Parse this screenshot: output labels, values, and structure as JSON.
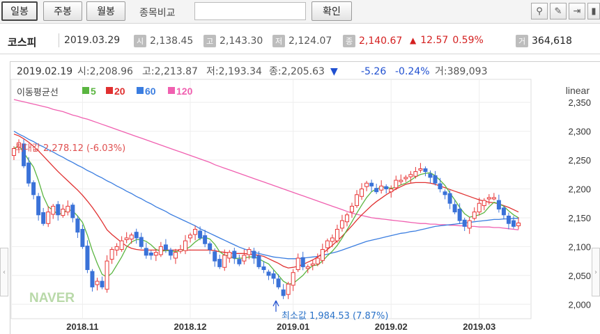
{
  "toolbar": {
    "period_buttons": [
      "일봉",
      "주봉",
      "월봉"
    ],
    "compare_label": "종목비교",
    "confirm_label": "확인",
    "tools": [
      "pin-icon",
      "pencil-icon",
      "cursor-icon",
      "bar-chart-icon"
    ]
  },
  "quote": {
    "name": "코스피",
    "date": "2019.03.29",
    "open_label": "시",
    "open": "2,138.45",
    "high_label": "고",
    "high": "2,143.30",
    "low_label": "저",
    "low": "2,124.07",
    "close_label": "종",
    "close": "2,140.67",
    "change_arrow": "▲",
    "change": "12.57",
    "change_pct": "0.59%",
    "volume_label": "거",
    "volume": "364,618",
    "up_color": "#d42020"
  },
  "chart_data": {
    "type": "candlestick",
    "info_line": {
      "date": "2019.02.19",
      "open": "시:2,208.96",
      "high": "고:2,213.87",
      "low": "저:2,193.34",
      "close": "종:2,205.63",
      "arrow": "▼",
      "change": "-5.26",
      "change_pct": "-0.24%",
      "volume": "거:389,093"
    },
    "scale_label": "linear",
    "ma_title": "이동평균선",
    "ma_legend": [
      {
        "period": "5",
        "color": "#5ab540"
      },
      {
        "period": "20",
        "color": "#e03030"
      },
      {
        "period": "60",
        "color": "#3a7de0"
      },
      {
        "period": "120",
        "color": "#f060b0"
      }
    ],
    "y_ticks": [
      2350,
      2300,
      2250,
      2200,
      2150,
      2100,
      2050,
      2000
    ],
    "ylim": [
      1975,
      2390
    ],
    "x_ticks": [
      "2018.11",
      "2018.12",
      "2019.01",
      "2019.02",
      "2019.03"
    ],
    "x_tick_index": [
      14,
      36,
      57,
      77,
      95
    ],
    "max_annotation": "최대값 2,278.12 (-6.03%)",
    "min_annotation": "최소값 1,984.53 (7.87%)",
    "watermark": "NAVER",
    "closes": [
      2270,
      2280,
      2240,
      2210,
      2190,
      2155,
      2140,
      2160,
      2170,
      2155,
      2165,
      2170,
      2150,
      2125,
      2100,
      2060,
      2030,
      2040,
      2030,
      2075,
      2095,
      2100,
      2110,
      2115,
      2120,
      2115,
      2100,
      2085,
      2085,
      2090,
      2100,
      2095,
      2085,
      2090,
      2095,
      2110,
      2120,
      2130,
      2115,
      2105,
      2095,
      2075,
      2065,
      2085,
      2090,
      2080,
      2070,
      2085,
      2095,
      2080,
      2065,
      2060,
      2050,
      2045,
      2030,
      2015,
      2035,
      2055,
      2080,
      2065,
      2065,
      2070,
      2080,
      2095,
      2110,
      2115,
      2130,
      2145,
      2155,
      2170,
      2190,
      2200,
      2210,
      2205,
      2195,
      2205,
      2200,
      2200,
      2215,
      2215,
      2220,
      2225,
      2230,
      2235,
      2230,
      2220,
      2210,
      2200,
      2190,
      2175,
      2160,
      2145,
      2135,
      2145,
      2160,
      2175,
      2180,
      2185,
      2185,
      2165,
      2155,
      2140,
      2135,
      2141
    ],
    "ma5": [
      2270,
      2275,
      2263,
      2250,
      2238,
      2215,
      2187,
      2169,
      2163,
      2156,
      2158,
      2164,
      2162,
      2153,
      2142,
      2120,
      2093,
      2071,
      2052,
      2047,
      2054,
      2068,
      2082,
      2099,
      2108,
      2112,
      2112,
      2109,
      2103,
      2095,
      2092,
      2093,
      2093,
      2091,
      2093,
      2095,
      2100,
      2108,
      2114,
      2116,
      2113,
      2104,
      2091,
      2085,
      2084,
      2079,
      2080,
      2080,
      2082,
      2082,
      2079,
      2074,
      2070,
      2060,
      2050,
      2040,
      2035,
      2036,
      2043,
      2050,
      2060,
      2067,
      2068,
      2075,
      2084,
      2092,
      2102,
      2115,
      2129,
      2143,
      2158,
      2172,
      2185,
      2195,
      2200,
      2203,
      2203,
      2201,
      2203,
      2207,
      2210,
      2215,
      2221,
      2225,
      2227,
      2228,
      2223,
      2215,
      2206,
      2193,
      2181,
      2168,
      2157,
      2151,
      2153,
      2155,
      2159,
      2169,
      2177,
      2174,
      2170,
      2162,
      2155,
      2150
    ],
    "ma20": [
      2295,
      2292,
      2287,
      2281,
      2274,
      2266,
      2257,
      2248,
      2239,
      2230,
      2222,
      2214,
      2206,
      2198,
      2189,
      2179,
      2168,
      2156,
      2143,
      2129,
      2121,
      2114,
      2107,
      2101,
      2097,
      2095,
      2094,
      2094,
      2094,
      2094,
      2094,
      2094,
      2094,
      2094,
      2094,
      2094,
      2094,
      2094,
      2094,
      2094,
      2094,
      2093,
      2091,
      2090,
      2089,
      2088,
      2088,
      2088,
      2087,
      2086,
      2085,
      2083,
      2079,
      2075,
      2071,
      2066,
      2063,
      2064,
      2066,
      2069,
      2073,
      2077,
      2082,
      2088,
      2095,
      2102,
      2110,
      2118,
      2127,
      2136,
      2146,
      2155,
      2163,
      2171,
      2178,
      2184,
      2190,
      2195,
      2200,
      2204,
      2208,
      2210,
      2211,
      2211,
      2211,
      2210,
      2208,
      2205,
      2202,
      2199,
      2196,
      2193,
      2190,
      2187,
      2184,
      2181,
      2179,
      2177,
      2176,
      2174,
      2171,
      2168,
      2164,
      2160
    ],
    "ma60": [
      2300,
      2295,
      2291,
      2286,
      2282,
      2277,
      2273,
      2268,
      2264,
      2259,
      2255,
      2250,
      2246,
      2241,
      2237,
      2232,
      2228,
      2223,
      2219,
      2214,
      2210,
      2205,
      2201,
      2196,
      2192,
      2187,
      2183,
      2178,
      2174,
      2169,
      2165,
      2161,
      2156,
      2152,
      2148,
      2144,
      2140,
      2136,
      2131,
      2127,
      2123,
      2119,
      2115,
      2111,
      2107,
      2103,
      2099,
      2096,
      2093,
      2090,
      2088,
      2086,
      2084,
      2082,
      2081,
      2080,
      2079,
      2079,
      2079,
      2080,
      2081,
      2082,
      2083,
      2085,
      2087,
      2089,
      2091,
      2094,
      2097,
      2100,
      2103,
      2106,
      2109,
      2111,
      2113,
      2115,
      2117,
      2119,
      2121,
      2123,
      2124,
      2126,
      2127,
      2129,
      2131,
      2133,
      2135,
      2136,
      2137,
      2138,
      2139,
      2140,
      2141,
      2142,
      2143,
      2144,
      2145,
      2146,
      2147,
      2147,
      2148,
      2148,
      2149,
      2149
    ],
    "ma120": [
      2355,
      2353,
      2351,
      2349,
      2347,
      2345,
      2343,
      2341,
      2338,
      2336,
      2334,
      2331,
      2328,
      2326,
      2323,
      2321,
      2318,
      2315,
      2312,
      2309,
      2306,
      2303,
      2300,
      2297,
      2294,
      2291,
      2288,
      2285,
      2282,
      2279,
      2276,
      2273,
      2270,
      2267,
      2264,
      2261,
      2258,
      2255,
      2252,
      2249,
      2246,
      2242,
      2239,
      2236,
      2233,
      2230,
      2227,
      2224,
      2221,
      2218,
      2215,
      2212,
      2209,
      2206,
      2203,
      2200,
      2197,
      2194,
      2191,
      2188,
      2185,
      2182,
      2179,
      2176,
      2173,
      2170,
      2167,
      2164,
      2161,
      2158,
      2156,
      2154,
      2152,
      2150,
      2149,
      2148,
      2147,
      2146,
      2145,
      2144,
      2143,
      2142,
      2141,
      2140,
      2140,
      2139,
      2139,
      2138,
      2138,
      2137,
      2137,
      2136,
      2136,
      2135,
      2135,
      2134,
      2134,
      2134,
      2133,
      2133,
      2132,
      2131,
      2130,
      2129
    ]
  }
}
